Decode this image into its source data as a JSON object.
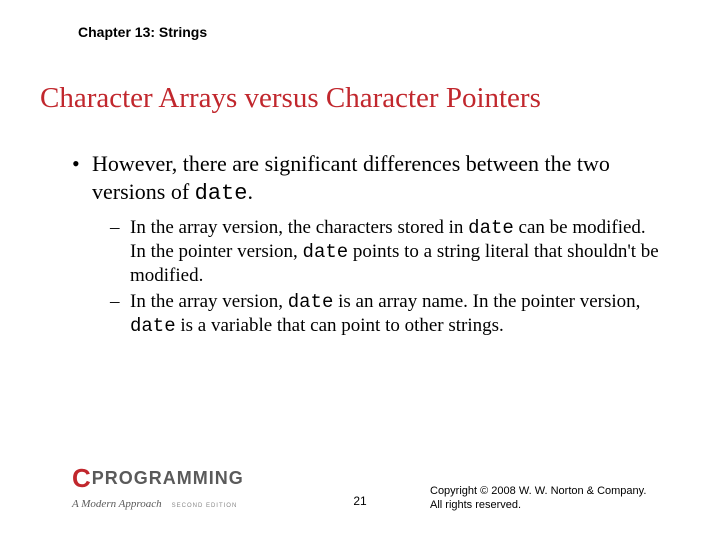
{
  "chapter": "Chapter 13: Strings",
  "title_color": "#c1272d",
  "title": "Character Arrays versus Character Pointers",
  "bullet": {
    "pre": "However, there are significant differences between the two versions of ",
    "code": "date",
    "post": "."
  },
  "sub1": {
    "a": "In the array version, the characters stored in ",
    "b": "date",
    "c": " can be modified. In the pointer version, ",
    "d": "date",
    "e": " points to a string literal that shouldn't be modified."
  },
  "sub2": {
    "a": "In the array version, ",
    "b": "date",
    "c": " is an array name. In the pointer version, ",
    "d": "date",
    "e": " is a variable that can point to other strings."
  },
  "logo": {
    "c": "C",
    "prog": "PROGRAMMING",
    "sub": "A Modern Approach",
    "ed": "SECOND EDITION"
  },
  "page": "21",
  "copyright": {
    "l1": "Copyright © 2008 W. W. Norton & Company.",
    "l2": "All rights reserved."
  }
}
